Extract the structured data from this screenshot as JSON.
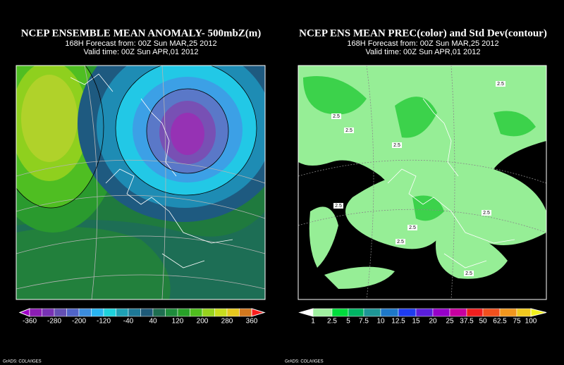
{
  "panels": [
    {
      "title": "NCEP ENSEMBLE MEAN ANOMALY- 500mbZ(m)",
      "forecast": "168H Forecast from: 00Z Sun MAR,25 2012",
      "valid": "Valid time: 00Z Sun APR,01 2012",
      "colorbar_labels": [
        -360,
        -280,
        -200,
        -120,
        -40,
        40,
        120,
        200,
        280,
        360
      ],
      "credit": "GrADS: COLA/IGES"
    },
    {
      "title": "NCEP ENS MEAN PREC(color) and Std Dev(contour)",
      "forecast": "168H Forecast from: 00Z Sun MAR,25 2012",
      "valid": "Valid time: 00Z Sun APR,01 2012",
      "colorbar_labels": [
        1,
        2.5,
        5,
        7.5,
        10,
        12.5,
        15,
        20,
        25,
        37.5,
        50,
        62.5,
        75,
        100
      ],
      "contour_labels": [
        "2.5",
        "2.5",
        "2.5",
        "2.5",
        "2.5",
        "2.5",
        "2.5",
        "2.5",
        "2.5"
      ],
      "credit": "GrADS: COLA/IGES"
    }
  ]
}
